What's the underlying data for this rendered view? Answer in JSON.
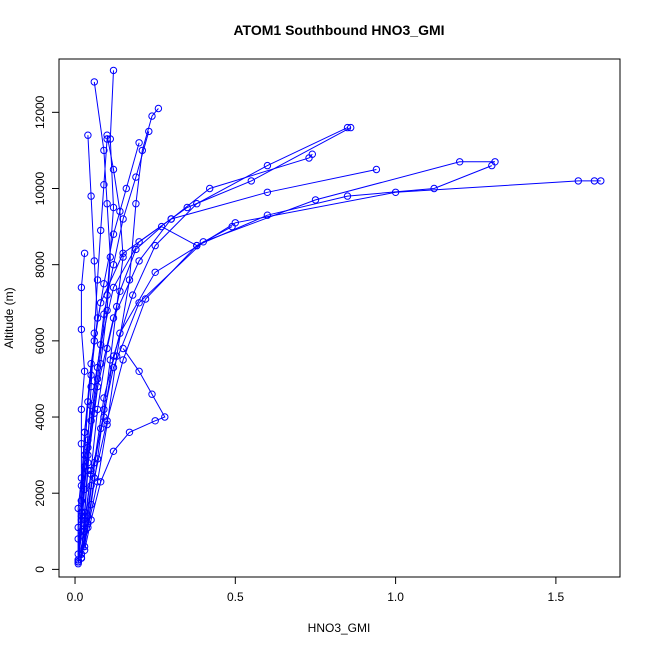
{
  "chart_data": {
    "type": "line",
    "title": "ATOM1 Southbound HNO3_GMI",
    "xlabel": "HNO3_GMI",
    "ylabel": "Altitude (m)",
    "xlim": [
      -0.05,
      1.7
    ],
    "ylim": [
      -200,
      13400
    ],
    "x_ticks": [
      0.0,
      0.5,
      1.0,
      1.5
    ],
    "x_tick_labels": [
      "0.0",
      "0.5",
      "1.0",
      "1.5"
    ],
    "y_ticks": [
      0,
      2000,
      4000,
      6000,
      8000,
      10000,
      12000
    ],
    "y_tick_labels": [
      "0",
      "2000",
      "4000",
      "6000",
      "8000",
      "10000",
      "12000"
    ],
    "marker": "open-circle",
    "color": "#0000ff",
    "grid": false,
    "series": [
      {
        "x": [
          0.01,
          0.01,
          0.01,
          0.02,
          0.02,
          0.02,
          0.03,
          0.02,
          0.02,
          0.03
        ],
        "y": [
          200,
          800,
          1600,
          2400,
          3300,
          4200,
          5200,
          6300,
          7400,
          8300
        ]
      },
      {
        "x": [
          0.02,
          0.03,
          0.05,
          0.09,
          0.12,
          0.18,
          0.25,
          0.38,
          0.6,
          0.85
        ],
        "y": [
          300,
          1200,
          2500,
          4000,
          5600,
          7200,
          8500,
          9600,
          10600,
          11600
        ]
      },
      {
        "x": [
          0.01,
          0.02,
          0.04,
          0.07,
          0.1,
          0.12,
          0.11,
          0.12
        ],
        "y": [
          250,
          1500,
          3200,
          5000,
          7200,
          9500,
          11300,
          13100
        ]
      },
      {
        "x": [
          0.01,
          0.02,
          0.03,
          0.05,
          0.08,
          0.15,
          0.3,
          0.6,
          0.94
        ],
        "y": [
          400,
          1800,
          3600,
          5400,
          7000,
          8300,
          9200,
          9900,
          10500
        ]
      },
      {
        "x": [
          0.02,
          0.04,
          0.06,
          0.09,
          0.14,
          0.25,
          0.5,
          1.0,
          1.57,
          1.62,
          1.64
        ],
        "y": [
          300,
          1400,
          2800,
          4500,
          6200,
          7800,
          9100,
          9900,
          10200,
          10200,
          10200
        ]
      },
      {
        "x": [
          0.01,
          0.03,
          0.05,
          0.08,
          0.12,
          0.2,
          0.4,
          0.75,
          1.2,
          1.31
        ],
        "y": [
          200,
          1000,
          2200,
          3700,
          5300,
          7000,
          8600,
          9700,
          10700,
          10700
        ]
      },
      {
        "x": [
          0.03,
          0.05,
          0.08,
          0.12,
          0.17,
          0.25,
          0.28,
          0.24,
          0.2,
          0.15
        ],
        "y": [
          500,
          1300,
          2300,
          3100,
          3600,
          3900,
          4000,
          4600,
          5200,
          5800
        ]
      },
      {
        "x": [
          0.02,
          0.04,
          0.07,
          0.1,
          0.13,
          0.17,
          0.19,
          0.21,
          0.24,
          0.26
        ],
        "y": [
          300,
          1100,
          2300,
          3800,
          5600,
          7600,
          9600,
          11000,
          11900,
          12100
        ]
      },
      {
        "x": [
          0.01,
          0.02,
          0.03,
          0.05,
          0.08,
          0.12,
          0.2,
          0.35,
          0.55,
          0.86
        ],
        "y": [
          200,
          1300,
          2700,
          4300,
          5900,
          7400,
          8600,
          9500,
          10200,
          11600
        ]
      },
      {
        "x": [
          0.02,
          0.03,
          0.04,
          0.06,
          0.08,
          0.1,
          0.11,
          0.1,
          0.09,
          0.06
        ],
        "y": [
          400,
          1500,
          2800,
          4100,
          5400,
          6800,
          8200,
          9600,
          11000,
          12800
        ]
      },
      {
        "x": [
          0.01,
          0.01,
          0.02,
          0.03,
          0.05,
          0.07,
          0.06,
          0.05,
          0.04
        ],
        "y": [
          200,
          1100,
          2200,
          3600,
          5100,
          6600,
          8100,
          9800,
          11400
        ]
      },
      {
        "x": [
          0.02,
          0.04,
          0.06,
          0.1,
          0.15,
          0.22,
          0.38,
          0.6,
          0.85,
          1.12,
          1.3
        ],
        "y": [
          300,
          1200,
          2400,
          3900,
          5500,
          7100,
          8500,
          9300,
          9800,
          10000,
          10600
        ]
      },
      {
        "x": [
          0.01,
          0.02,
          0.02,
          0.03,
          0.04,
          0.06,
          0.09,
          0.12,
          0.16,
          0.2
        ],
        "y": [
          200,
          900,
          1800,
          3000,
          4400,
          6000,
          7500,
          8800,
          10000,
          11200
        ]
      },
      {
        "x": [
          0.03,
          0.05,
          0.07,
          0.09,
          0.11,
          0.13,
          0.15,
          0.14,
          0.12,
          0.1
        ],
        "y": [
          600,
          1700,
          2900,
          4200,
          5500,
          6900,
          8200,
          9400,
          10500,
          11400
        ]
      },
      {
        "x": [
          0.01,
          0.02,
          0.04,
          0.07,
          0.12,
          0.2,
          0.3,
          0.42,
          0.73,
          0.74
        ],
        "y": [
          250,
          1400,
          3000,
          4800,
          6600,
          8100,
          9200,
          10000,
          10800,
          10900
        ]
      },
      {
        "x": [
          0.02,
          0.03,
          0.05,
          0.07,
          0.1,
          0.14,
          0.19,
          0.27,
          0.38,
          0.49
        ],
        "y": [
          300,
          1200,
          2600,
          4200,
          5800,
          7300,
          8400,
          9000,
          8500,
          9000
        ]
      },
      {
        "x": [
          0.01,
          0.02,
          0.03,
          0.04,
          0.05,
          0.06,
          0.07,
          0.08,
          0.09,
          0.1
        ],
        "y": [
          150,
          1000,
          2100,
          3400,
          4800,
          6200,
          7600,
          8900,
          10100,
          11300
        ]
      },
      {
        "x": [
          0.02,
          0.03,
          0.04,
          0.05,
          0.07,
          0.09,
          0.12,
          0.15,
          0.19,
          0.23
        ],
        "y": [
          400,
          1400,
          2600,
          3900,
          5300,
          6700,
          8000,
          9200,
          10300,
          11500
        ]
      }
    ]
  }
}
